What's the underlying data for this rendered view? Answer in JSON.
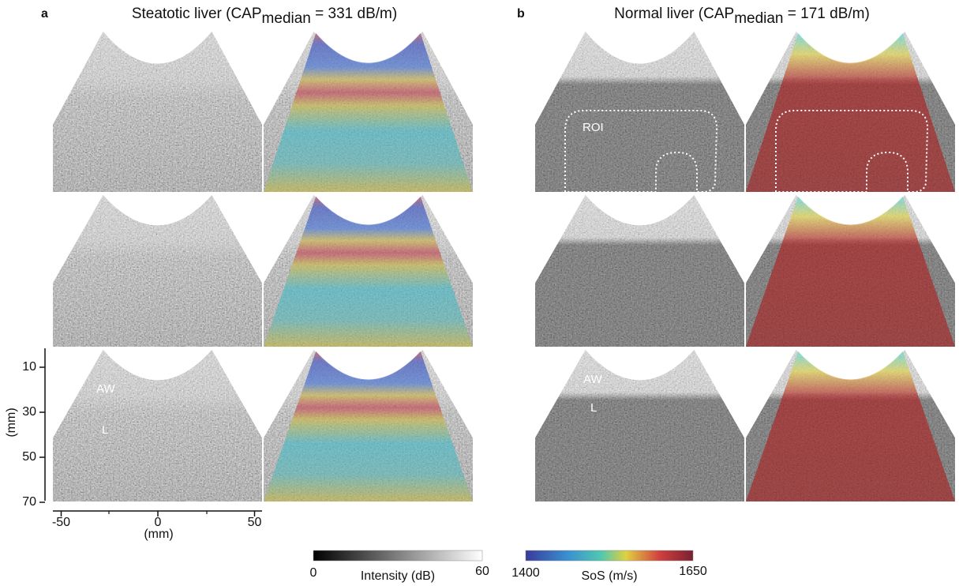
{
  "panels": [
    {
      "label": "a",
      "title": {
        "text": "Steatotic liver (CAP",
        "subscript": "median",
        "suffix": " = 331 dB/m)"
      },
      "annotations": {
        "aw": "AW",
        "l": "L"
      }
    },
    {
      "label": "b",
      "title": {
        "text": "Normal liver (CAP",
        "subscript": "median",
        "suffix": " = 171 dB/m)"
      },
      "annotations": {
        "roi": "ROI",
        "aw": "AW",
        "l": "L"
      }
    }
  ],
  "depth_axis": {
    "label": "(mm)",
    "ticks": [
      10,
      30,
      50,
      70
    ]
  },
  "lateral_axis": {
    "label": "(mm)",
    "ticks": [
      -50,
      0,
      50
    ]
  },
  "colorbars": [
    {
      "label": "Intensity (dB)",
      "min": 0,
      "max": 60
    },
    {
      "label": "SoS (m/s)",
      "min": 1400,
      "max": 1650
    }
  ]
}
